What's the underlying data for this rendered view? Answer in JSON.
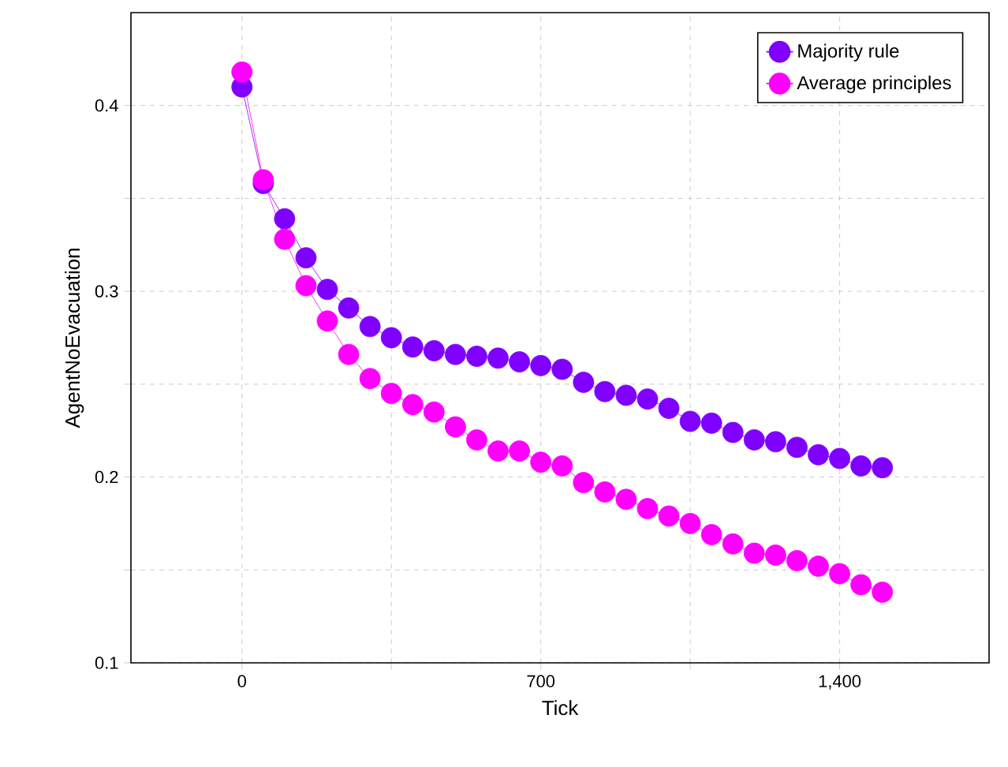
{
  "chart_data": {
    "type": "line",
    "xlabel": "Tick",
    "ylabel": "AgentNoEvacuation",
    "x": [
      0,
      50,
      100,
      150,
      200,
      250,
      300,
      350,
      400,
      450,
      500,
      550,
      600,
      650,
      700,
      750,
      800,
      850,
      900,
      950,
      1000,
      1050,
      1100,
      1150,
      1200,
      1250,
      1300,
      1350,
      1400,
      1450,
      1500
    ],
    "series": [
      {
        "name": "Majority rule",
        "color": "#7f00ff",
        "values": [
          0.41,
          0.358,
          0.339,
          0.318,
          0.301,
          0.291,
          0.281,
          0.275,
          0.27,
          0.268,
          0.266,
          0.265,
          0.264,
          0.262,
          0.26,
          0.258,
          0.251,
          0.246,
          0.244,
          0.242,
          0.237,
          0.23,
          0.229,
          0.224,
          0.22,
          0.219,
          0.216,
          0.212,
          0.21,
          0.206,
          0.205
        ]
      },
      {
        "name": "Average principles",
        "color": "#ff00ff",
        "values": [
          0.418,
          0.36,
          0.328,
          0.303,
          0.284,
          0.266,
          0.253,
          0.245,
          0.239,
          0.235,
          0.227,
          0.22,
          0.214,
          0.214,
          0.208,
          0.206,
          0.197,
          0.192,
          0.188,
          0.183,
          0.179,
          0.175,
          0.169,
          0.164,
          0.159,
          0.158,
          0.155,
          0.152,
          0.148,
          0.142,
          0.138
        ]
      }
    ],
    "xlim": [
      -260,
      1750
    ],
    "ylim": [
      0.1,
      0.45
    ],
    "xticks": [
      0,
      {
        "value": 350,
        "label": null
      },
      700,
      {
        "value": 1050,
        "label": null
      },
      {
        "value": 1400,
        "label": "1,400"
      }
    ],
    "yticks": [
      0.1,
      {
        "value": 0.15,
        "label": null
      },
      0.2,
      {
        "value": 0.25,
        "label": null
      },
      0.3,
      {
        "value": 0.35,
        "label": null
      },
      0.4
    ],
    "grid": true,
    "legend": "top right",
    "marker": "circle",
    "line_style": "solid"
  }
}
